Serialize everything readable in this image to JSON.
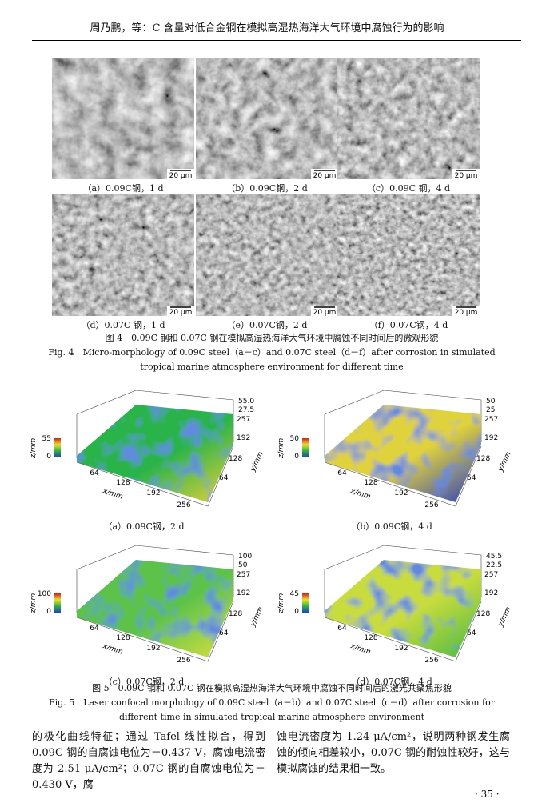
{
  "header": {
    "title": "周乃鹏，等：C 含量对低合金钢在模拟高湿热海洋大气环境中腐蚀行为的影响"
  },
  "figure4": {
    "panels": [
      {
        "label": "（a）0.09C钢，1 d",
        "scale": "20 μm"
      },
      {
        "label": "（b）0.09C钢，2 d",
        "scale": "20 μm"
      },
      {
        "label": "（c）0.09C 钢，4 d",
        "scale": "20 μm"
      },
      {
        "label": "（d）0.07C 钢，1 d",
        "scale": "20 μm"
      },
      {
        "label": "（e）0.07C钢，2 d",
        "scale": "20 μm"
      },
      {
        "label": "（f）0.07C钢，4 d",
        "scale": "20 μm"
      }
    ],
    "caption_cn": "图 4　0.09C 钢和 0.07C 钢在模拟高湿热海洋大气环境中腐蚀不同时间后的微观形貌",
    "caption_en": "Fig. 4　Micro-morphology of 0.09C steel（a－c）and 0.07C steel（d－f）after corrosion in simulated tropical marine atmosphere environment for different time"
  },
  "figure5": {
    "panels": [
      {
        "label": "（a）0.09C钢，2 d",
        "zbar": [
          "55",
          "0"
        ],
        "zlabel": "z/mm",
        "top": [
          "55.0",
          "27.5"
        ],
        "xticks": [
          "64",
          "128",
          "192",
          "256"
        ],
        "xlabel": "x/mm",
        "yticks": [
          "257",
          "192",
          "128",
          "64"
        ],
        "ylabel": "y/mm"
      },
      {
        "label": "（b）0.09C钢，4 d",
        "zbar": [
          "50",
          "0"
        ],
        "zlabel": "z/mm",
        "top": [
          "50",
          "25"
        ],
        "xticks": [
          "64",
          "128",
          "192",
          "256"
        ],
        "xlabel": "x/mm",
        "yticks": [
          "257",
          "192",
          "128",
          "64"
        ],
        "ylabel": "y/mm"
      },
      {
        "label": "（c）0.07C钢，2 d",
        "zbar": [
          "100",
          "0"
        ],
        "zlabel": "z/mm",
        "top": [
          "100",
          "50"
        ],
        "xticks": [
          "64",
          "128",
          "192",
          "256"
        ],
        "xlabel": "x/mm",
        "yticks": [
          "257",
          "192",
          "128",
          "64"
        ],
        "ylabel": "y/mm"
      },
      {
        "label": "（d）0.07C钢，4 d",
        "zbar": [
          "45",
          "0"
        ],
        "zlabel": "z/mm",
        "top": [
          "45.5",
          "22.5"
        ],
        "xticks": [
          "64",
          "128",
          "192",
          "256"
        ],
        "xlabel": "x/mm",
        "yticks": [
          "257",
          "192",
          "128",
          "64"
        ],
        "ylabel": "y/mm"
      }
    ],
    "caption_cn": "图 5　0.09C 钢和 0.07C 钢在模拟高湿热海洋大气环境中腐蚀不同时间后的激光共聚焦形貌",
    "caption_en": "Fig. 5　Laser confocal morphology of 0.09C steel（a－b）and 0.07C steel（c－d）after corrosion for different time in simulated tropical marine atmosphere environment"
  },
  "body": {
    "left": "的极化曲线特征；通过 Tafel 线性拟合，得到 0.09C 钢的自腐蚀电位为－0.437 V，腐蚀电流密度为 2.51 μA/cm²；0.07C 钢的自腐蚀电位为－0.430 V，腐",
    "right": "蚀电流密度为 1.24 μA/cm²，说明两种钢发生腐蚀的倾向相差较小，0.07C 钢的耐蚀性较好，这与模拟腐蚀的结果相一致。"
  },
  "page_number": "· 35 ·"
}
